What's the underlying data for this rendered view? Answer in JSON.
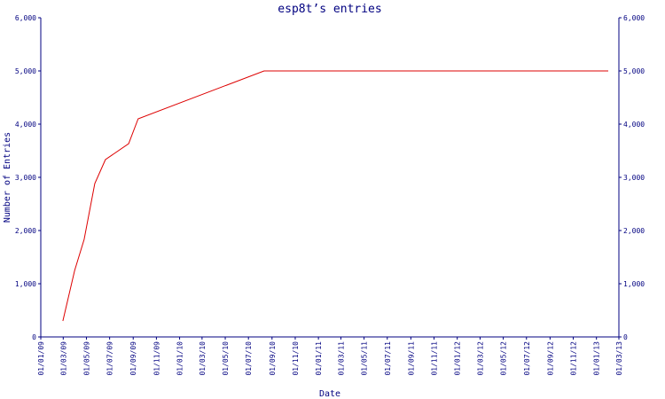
{
  "chart_data": {
    "type": "line",
    "title": "esp8t’s entries",
    "x_label": "Date",
    "y_label": "Number of Entries",
    "x": [
      "2009-02-28",
      "2009-03-31",
      "2009-04-25",
      "2009-05-23",
      "2009-06-20",
      "2009-08-20",
      "2009-09-14",
      "2010-08-11",
      "2013-02-01"
    ],
    "series": [
      {
        "name": "entries",
        "color": "#dd0000",
        "values": [
          300,
          1250,
          1833,
          2883,
          3333,
          3633,
          4100,
          5000,
          5000
        ]
      }
    ],
    "xlim": [
      "2009-01-01",
      "2013-03-01"
    ],
    "xticks": [
      {
        "value": "2009-01-01",
        "label": "01/01/09"
      },
      {
        "value": "2009-03-01",
        "label": "01/03/09"
      },
      {
        "value": "2009-05-01",
        "label": "01/05/09"
      },
      {
        "value": "2009-07-01",
        "label": "01/07/09"
      },
      {
        "value": "2009-09-01",
        "label": "01/09/09"
      },
      {
        "value": "2009-11-01",
        "label": "01/11/09"
      },
      {
        "value": "2010-01-01",
        "label": "01/01/10"
      },
      {
        "value": "2010-03-01",
        "label": "01/03/10"
      },
      {
        "value": "2010-05-01",
        "label": "01/05/10"
      },
      {
        "value": "2010-07-01",
        "label": "01/07/10"
      },
      {
        "value": "2010-09-01",
        "label": "01/09/10"
      },
      {
        "value": "2010-11-01",
        "label": "01/11/10"
      },
      {
        "value": "2011-01-01",
        "label": "01/01/11"
      },
      {
        "value": "2011-03-01",
        "label": "01/03/11"
      },
      {
        "value": "2011-05-01",
        "label": "01/05/11"
      },
      {
        "value": "2011-07-01",
        "label": "01/07/11"
      },
      {
        "value": "2011-09-01",
        "label": "01/09/11"
      },
      {
        "value": "2011-11-01",
        "label": "01/11/11"
      },
      {
        "value": "2012-01-01",
        "label": "01/01/12"
      },
      {
        "value": "2012-03-01",
        "label": "01/03/12"
      },
      {
        "value": "2012-05-01",
        "label": "01/05/12"
      },
      {
        "value": "2012-07-01",
        "label": "01/07/12"
      },
      {
        "value": "2012-09-01",
        "label": "01/09/12"
      },
      {
        "value": "2012-11-01",
        "label": "01/11/12"
      },
      {
        "value": "2013-01-01",
        "label": "01/01/13"
      },
      {
        "value": "2013-03-01",
        "label": "01/03/13"
      }
    ],
    "ylim": [
      0,
      6000
    ],
    "yticks": [
      0,
      {
        "value": 1000,
        "label": "1,000"
      },
      {
        "value": 2000,
        "label": "2,000"
      },
      {
        "value": 3000,
        "label": "3,000"
      },
      {
        "value": 4000,
        "label": "4,000"
      },
      {
        "value": 5000,
        "label": "5,000"
      },
      {
        "value": 6000,
        "label": "6,000"
      }
    ],
    "y2lim": [
      0,
      6000
    ],
    "y2ticks": [
      0,
      {
        "value": 1000,
        "label": "1,000"
      },
      {
        "value": 2000,
        "label": "2,000"
      },
      {
        "value": 3000,
        "label": "3,000"
      },
      {
        "value": 4000,
        "label": "4,000"
      },
      {
        "value": 5000,
        "label": "5,000"
      },
      {
        "value": 6000,
        "label": "6,000"
      }
    ],
    "grid": false
  }
}
